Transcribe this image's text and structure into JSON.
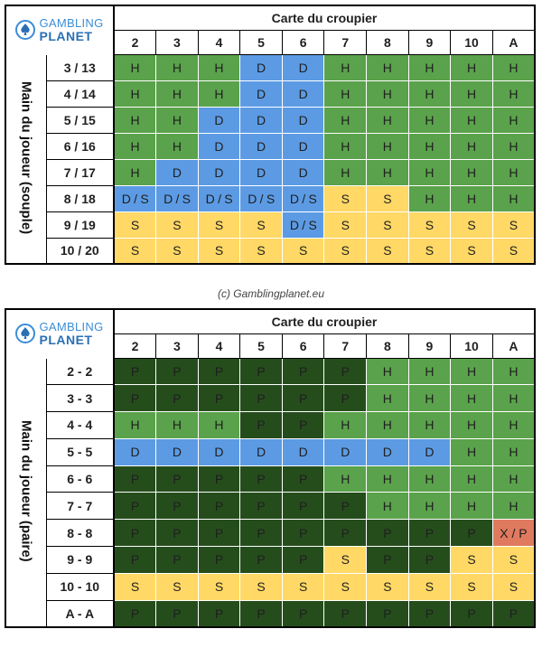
{
  "logo": {
    "line1": "GAMBLING",
    "line2": "PLANET"
  },
  "dealer_header": "Carte du croupier",
  "dealer_cards": [
    "2",
    "3",
    "4",
    "5",
    "6",
    "7",
    "8",
    "9",
    "10",
    "A"
  ],
  "credit": "(c) Gamblingplanet.eu",
  "soft": {
    "side_label": "Main du joueur (souple)",
    "rows": [
      {
        "label": "3 / 13",
        "cells": [
          "H",
          "H",
          "H",
          "D",
          "D",
          "H",
          "H",
          "H",
          "H",
          "H"
        ]
      },
      {
        "label": "4 / 14",
        "cells": [
          "H",
          "H",
          "H",
          "D",
          "D",
          "H",
          "H",
          "H",
          "H",
          "H"
        ]
      },
      {
        "label": "5 / 15",
        "cells": [
          "H",
          "H",
          "D",
          "D",
          "D",
          "H",
          "H",
          "H",
          "H",
          "H"
        ]
      },
      {
        "label": "6 / 16",
        "cells": [
          "H",
          "H",
          "D",
          "D",
          "D",
          "H",
          "H",
          "H",
          "H",
          "H"
        ]
      },
      {
        "label": "7 / 17",
        "cells": [
          "H",
          "D",
          "D",
          "D",
          "D",
          "H",
          "H",
          "H",
          "H",
          "H"
        ]
      },
      {
        "label": "8 / 18",
        "cells": [
          "D / S",
          "D / S",
          "D / S",
          "D / S",
          "D / S",
          "S",
          "S",
          "H",
          "H",
          "H"
        ]
      },
      {
        "label": "9 / 19",
        "cells": [
          "S",
          "S",
          "S",
          "S",
          "D / S",
          "S",
          "S",
          "S",
          "S",
          "S"
        ]
      },
      {
        "label": "10 / 20",
        "cells": [
          "S",
          "S",
          "S",
          "S",
          "S",
          "S",
          "S",
          "S",
          "S",
          "S"
        ]
      }
    ]
  },
  "pairs": {
    "side_label": "Main du joueur (paire)",
    "rows": [
      {
        "label": "2 - 2",
        "cells": [
          "P",
          "P",
          "P",
          "P",
          "P",
          "P",
          "H",
          "H",
          "H",
          "H"
        ]
      },
      {
        "label": "3 - 3",
        "cells": [
          "P",
          "P",
          "P",
          "P",
          "P",
          "P",
          "H",
          "H",
          "H",
          "H"
        ]
      },
      {
        "label": "4 - 4",
        "cells": [
          "H",
          "H",
          "H",
          "P",
          "P",
          "H",
          "H",
          "H",
          "H",
          "H"
        ]
      },
      {
        "label": "5 - 5",
        "cells": [
          "D",
          "D",
          "D",
          "D",
          "D",
          "D",
          "D",
          "D",
          "H",
          "H"
        ]
      },
      {
        "label": "6 - 6",
        "cells": [
          "P",
          "P",
          "P",
          "P",
          "P",
          "H",
          "H",
          "H",
          "H",
          "H"
        ]
      },
      {
        "label": "7 - 7",
        "cells": [
          "P",
          "P",
          "P",
          "P",
          "P",
          "P",
          "H",
          "H",
          "H",
          "H"
        ]
      },
      {
        "label": "8 - 8",
        "cells": [
          "P",
          "P",
          "P",
          "P",
          "P",
          "P",
          "P",
          "P",
          "P",
          "X / P"
        ]
      },
      {
        "label": "9 - 9",
        "cells": [
          "P",
          "P",
          "P",
          "P",
          "P",
          "S",
          "P",
          "P",
          "S",
          "S"
        ]
      },
      {
        "label": "10 - 10",
        "cells": [
          "S",
          "S",
          "S",
          "S",
          "S",
          "S",
          "S",
          "S",
          "S",
          "S"
        ]
      },
      {
        "label": "A - A",
        "cells": [
          "P",
          "P",
          "P",
          "P",
          "P",
          "P",
          "P",
          "P",
          "P",
          "P"
        ]
      }
    ]
  }
}
